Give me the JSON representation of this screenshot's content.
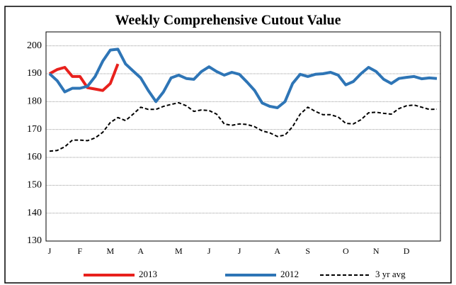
{
  "chart_data": {
    "type": "line",
    "title": "Weekly Comprehensive Cutout Value",
    "categories": [
      "J",
      null,
      null,
      null,
      "F",
      null,
      null,
      null,
      "M",
      null,
      null,
      null,
      "A",
      null,
      null,
      null,
      null,
      "M",
      null,
      null,
      null,
      "J",
      null,
      null,
      null,
      "J",
      null,
      null,
      null,
      null,
      "A",
      null,
      null,
      null,
      "S",
      null,
      null,
      null,
      null,
      "O",
      null,
      null,
      null,
      "N",
      null,
      null,
      null,
      "D",
      null,
      null,
      null,
      null
    ],
    "series": [
      {
        "name": "2013",
        "color": "#e8211d",
        "style": "solid",
        "values": [
          190,
          191.5,
          192.3,
          189,
          189,
          185,
          184.5,
          184,
          186.5,
          193.5,
          null,
          null,
          null,
          null,
          null,
          null,
          null,
          null,
          null,
          null,
          null,
          null,
          null,
          null,
          null,
          null,
          null,
          null,
          null,
          null,
          null,
          null,
          null,
          null,
          null,
          null,
          null,
          null,
          null,
          null,
          null,
          null,
          null,
          null,
          null,
          null,
          null,
          null,
          null,
          null,
          null,
          null
        ]
      },
      {
        "name": "2012",
        "color": "#2e75b6",
        "style": "solid",
        "values": [
          190,
          187.5,
          183.5,
          184.8,
          184.8,
          185.5,
          189,
          194.5,
          198.5,
          198.8,
          193.5,
          191,
          188.5,
          184,
          180,
          183.5,
          188.5,
          189.5,
          188.3,
          188,
          190.8,
          192.5,
          190.8,
          189.5,
          190.5,
          189.8,
          187,
          184,
          179.5,
          178.3,
          177.8,
          180,
          186.5,
          189.8,
          189,
          189.8,
          190,
          190.5,
          189.5,
          186,
          187.2,
          190,
          192.3,
          190.8,
          188,
          186.5,
          188.3,
          188.7,
          189,
          188.2,
          188.5,
          188.3
        ]
      },
      {
        "name": "3 yr avg",
        "color": "#000000",
        "style": "dashed",
        "values": [
          162.2,
          162.5,
          163.8,
          166.2,
          166.2,
          166,
          167,
          169,
          172.5,
          174.3,
          173.2,
          175.5,
          178,
          177.2,
          177.2,
          178.3,
          179,
          179.6,
          178.5,
          176.5,
          177,
          176.8,
          175.5,
          172,
          171.5,
          172,
          171.8,
          171,
          169.5,
          168.8,
          167.5,
          168,
          171,
          175.5,
          178,
          176.5,
          175.3,
          175.3,
          174.5,
          172.2,
          172,
          173.5,
          176,
          176.2,
          175.8,
          175.5,
          177.5,
          178.5,
          178.8,
          178,
          177.2,
          177.3
        ]
      }
    ],
    "ylim": [
      130,
      205
    ],
    "yticks": [
      130,
      140,
      150,
      160,
      170,
      180,
      190,
      200
    ],
    "grid": true,
    "legend": "bottom"
  }
}
